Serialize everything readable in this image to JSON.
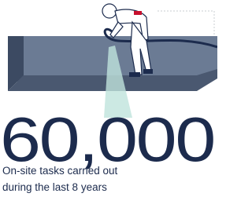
{
  "stat": {
    "value": "60,000",
    "caption": [
      "On-site tasks carried out",
      "during the last 8 years"
    ]
  }
}
